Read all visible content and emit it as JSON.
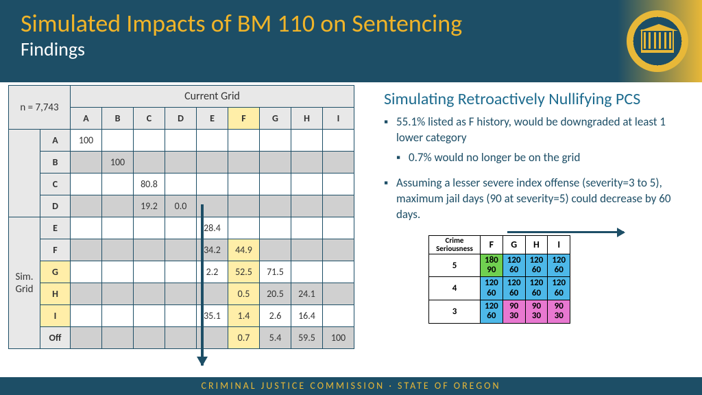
{
  "header": {
    "title": "Simulated Impacts of BM 110 on Sentencing",
    "subtitle": "Findings"
  },
  "grid": {
    "n_label": "n = 7,743",
    "top_label": "Current Grid",
    "side_label_1": "Sim.",
    "side_label_2": "Grid",
    "cols": [
      "A",
      "B",
      "C",
      "D",
      "E",
      "F",
      "G",
      "H",
      "I"
    ],
    "rows": [
      "A",
      "B",
      "C",
      "D",
      "E",
      "F",
      "G",
      "H",
      "I",
      "Off"
    ],
    "hl_col": 5,
    "hl_rows": [
      6,
      7,
      8
    ],
    "cells": {
      "0,0": "100",
      "1,1": "100",
      "2,2": "80.8",
      "3,2": "19.2",
      "3,3": "0.0",
      "4,4": "28.4",
      "5,4": "34.2",
      "5,5": "44.9",
      "6,4": "2.2",
      "6,5": "52.5",
      "6,6": "71.5",
      "7,5": "0.5",
      "7,6": "20.5",
      "7,7": "24.1",
      "8,4": "35.1",
      "8,5": "1.4",
      "8,6": "2.6",
      "8,7": "16.4",
      "9,5": "0.7",
      "9,6": "5.4",
      "9,7": "59.5",
      "9,8": "100"
    }
  },
  "right": {
    "title": "Simulating Retroactively Nullifying PCS",
    "bullet1": "55.1% listed as F history, would be downgraded at least 1 lower category",
    "sub1": "0.7% would no longer be on the grid",
    "bullet2": "Assuming a lesser severe index offense (severity=3 to 5), maximum jail days (90 at severity=5) could decrease by 60 days."
  },
  "mini": {
    "corner": "Crime\nSeriousness",
    "cols": [
      "F",
      "G",
      "H",
      "I"
    ],
    "rows": [
      {
        "h": "5",
        "cells": [
          {
            "t": "180",
            "b": "90",
            "c": "g"
          },
          {
            "t": "120",
            "b": "60",
            "c": "b"
          },
          {
            "t": "120",
            "b": "60",
            "c": "b"
          },
          {
            "t": "120",
            "b": "60",
            "c": "b"
          }
        ]
      },
      {
        "h": "4",
        "cells": [
          {
            "t": "120",
            "b": "60",
            "c": "b"
          },
          {
            "t": "120",
            "b": "60",
            "c": "b"
          },
          {
            "t": "120",
            "b": "60",
            "c": "b"
          },
          {
            "t": "120",
            "b": "60",
            "c": "b"
          }
        ]
      },
      {
        "h": "3",
        "cells": [
          {
            "t": "120",
            "b": "60",
            "c": "b"
          },
          {
            "t": "90",
            "b": "30",
            "c": "p"
          },
          {
            "t": "90",
            "b": "30",
            "c": "p"
          },
          {
            "t": "90",
            "b": "30",
            "c": "p"
          }
        ]
      }
    ]
  },
  "footer": "CRIMINAL JUSTICE COMMISSION · STATE OF OREGON"
}
